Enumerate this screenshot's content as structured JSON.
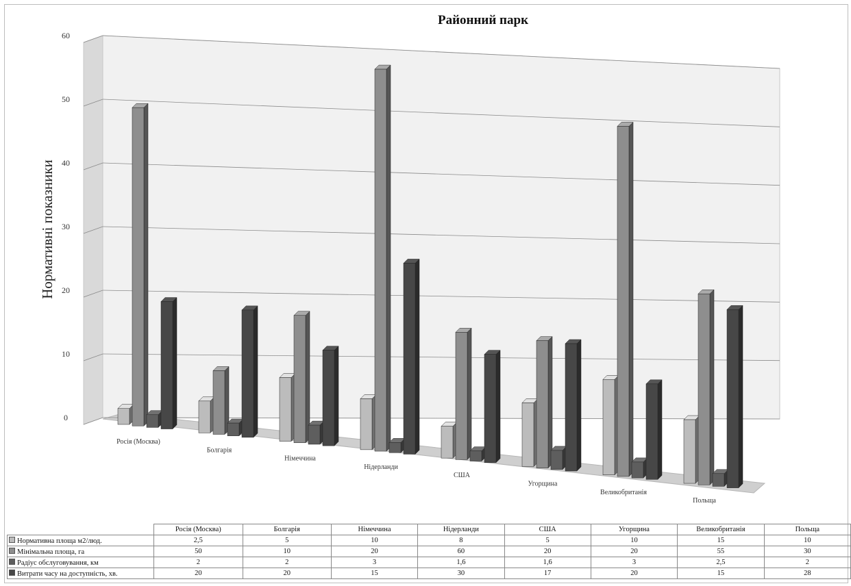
{
  "chart_data": {
    "type": "bar",
    "title": "Районний парк",
    "ylabel": "Нормативні показники",
    "xlabel": "",
    "ylim": [
      0,
      60
    ],
    "yticks": [
      "0",
      "10",
      "20",
      "30",
      "40",
      "50",
      "60"
    ],
    "categories": [
      "Росія (Москва)",
      "Болгарія",
      "Німеччина",
      "Нідерланди",
      "США",
      "Угорщина",
      "Великобританія",
      "Польща"
    ],
    "series": [
      {
        "name": "Нормативна площа м2/люд.",
        "values": [
          2.5,
          5,
          10,
          8,
          5,
          10,
          15,
          10
        ],
        "labels": [
          "2,5",
          "5",
          "10",
          "8",
          "5",
          "10",
          "15",
          "10"
        ],
        "color": "#bcbcbc"
      },
      {
        "name": "Мінімальна площа, га",
        "values": [
          50,
          10,
          20,
          60,
          20,
          20,
          55,
          30
        ],
        "labels": [
          "50",
          "10",
          "20",
          "60",
          "20",
          "20",
          "55",
          "30"
        ],
        "color": "#8e8e8e"
      },
      {
        "name": "Радіус обслуговування, км",
        "values": [
          2,
          2,
          3,
          1.6,
          1.6,
          3,
          2.5,
          2
        ],
        "labels": [
          "2",
          "2",
          "3",
          "1,6",
          "1,6",
          "3",
          "2,5",
          "2"
        ],
        "color": "#5e5e5e"
      },
      {
        "name": "Витрати часу на доступність, хв.",
        "values": [
          20,
          20,
          15,
          30,
          17,
          20,
          15,
          28
        ],
        "labels": [
          "20",
          "20",
          "15",
          "30",
          "17",
          "20",
          "15",
          "28"
        ],
        "color": "#474747"
      }
    ],
    "grid": true,
    "legend": "data-table-below"
  }
}
